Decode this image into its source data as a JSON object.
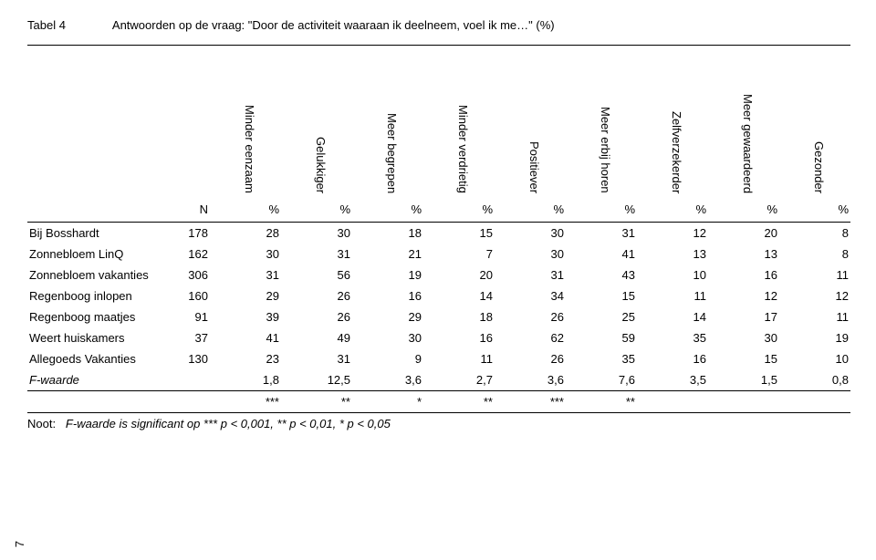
{
  "title": {
    "tabnum": "Tabel 4",
    "text": "Antwoorden op de vraag: \"Door de activiteit waaraan ik deelneem, voel ik me…\" (%)"
  },
  "columns": {
    "n": "N",
    "pct": "%",
    "headers": [
      "Minder eenzaam",
      "Gelukkiger",
      "Meer begrepen",
      "Minder verdrietig",
      "Positiever",
      "Meer erbij horen",
      "Zelfverzekerder",
      "Meer gewaardeerd",
      "Gezonder"
    ]
  },
  "rows": [
    {
      "label": "Bij Bosshardt",
      "n": "178",
      "vals": [
        "28",
        "30",
        "18",
        "15",
        "30",
        "31",
        "12",
        "20",
        "8"
      ]
    },
    {
      "label": "Zonnebloem LinQ",
      "n": "162",
      "vals": [
        "30",
        "31",
        "21",
        "7",
        "30",
        "41",
        "13",
        "13",
        "8"
      ]
    },
    {
      "label": "Zonnebloem vakanties",
      "n": "306",
      "vals": [
        "31",
        "56",
        "19",
        "20",
        "31",
        "43",
        "10",
        "16",
        "11"
      ]
    },
    {
      "label": "Regenboog inlopen",
      "n": "160",
      "vals": [
        "29",
        "26",
        "16",
        "14",
        "34",
        "15",
        "11",
        "12",
        "12"
      ]
    },
    {
      "label": "Regenboog maatjes",
      "n": "91",
      "vals": [
        "39",
        "26",
        "29",
        "18",
        "26",
        "25",
        "14",
        "17",
        "11"
      ]
    },
    {
      "label": "Weert huiskamers",
      "n": "37",
      "vals": [
        "41",
        "49",
        "30",
        "16",
        "62",
        "59",
        "35",
        "30",
        "19"
      ]
    },
    {
      "label": "Allegoeds Vakanties",
      "n": "130",
      "vals": [
        "23",
        "31",
        "9",
        "11",
        "26",
        "35",
        "16",
        "15",
        "10"
      ]
    }
  ],
  "fwaarde": {
    "label": "F-waarde",
    "vals": [
      "1,8",
      "12,5",
      "3,6",
      "2,7",
      "3,6",
      "7,6",
      "3,5",
      "1,5",
      "0,8"
    ]
  },
  "sig": [
    "***",
    "**",
    "*",
    "**",
    "***",
    "**",
    "",
    "",
    ""
  ],
  "noot": {
    "prefix": "Noot:",
    "text": "F-waarde is significant op *** p < 0,001, ** p < 0,01, * p < 0,05"
  },
  "footer_pagenum": "7"
}
